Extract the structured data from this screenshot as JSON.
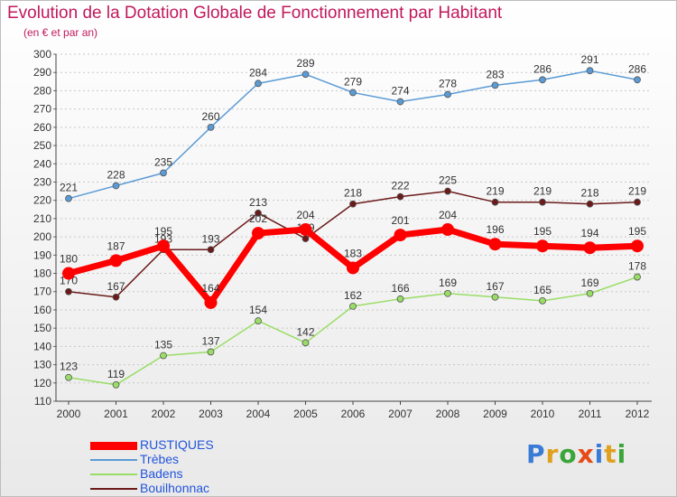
{
  "title": "Evolution de la Dotation Globale de Fonctionnement par Habitant",
  "subtitle": "(en € et par an)",
  "logo_text": "Proxiti",
  "chart_data": {
    "type": "line",
    "title": "Evolution de la Dotation Globale de Fonctionnement par Habitant",
    "subtitle": "(en € et par an)",
    "xlabel": "",
    "ylabel": "",
    "x": [
      "2000",
      "2001",
      "2002",
      "2003",
      "2004",
      "2005",
      "2006",
      "2007",
      "2008",
      "2009",
      "2010",
      "2011",
      "2012"
    ],
    "ylim": [
      110,
      300
    ],
    "yticks": [
      110,
      120,
      130,
      140,
      150,
      160,
      170,
      180,
      190,
      200,
      210,
      220,
      230,
      240,
      250,
      260,
      270,
      280,
      290,
      300
    ],
    "grid": "horizontal dotted",
    "legend_position": "bottom-left",
    "series": [
      {
        "name": "RUSTIQUES",
        "color": "#ff0000",
        "values": [
          180,
          187,
          195,
          164,
          202,
          204,
          183,
          201,
          204,
          196,
          195,
          194,
          195
        ]
      },
      {
        "name": "Trèbes",
        "color": "#5b9bd5",
        "values": [
          221,
          228,
          235,
          260,
          284,
          289,
          279,
          274,
          278,
          283,
          286,
          291,
          286
        ]
      },
      {
        "name": "Badens",
        "color": "#99dd66",
        "values": [
          123,
          119,
          135,
          137,
          154,
          142,
          162,
          166,
          169,
          167,
          165,
          169,
          178
        ]
      },
      {
        "name": "Bouilhonnac",
        "color": "#6b1a1a",
        "values": [
          170,
          167,
          193,
          193,
          213,
          199,
          218,
          222,
          225,
          219,
          219,
          218,
          219
        ]
      }
    ]
  }
}
